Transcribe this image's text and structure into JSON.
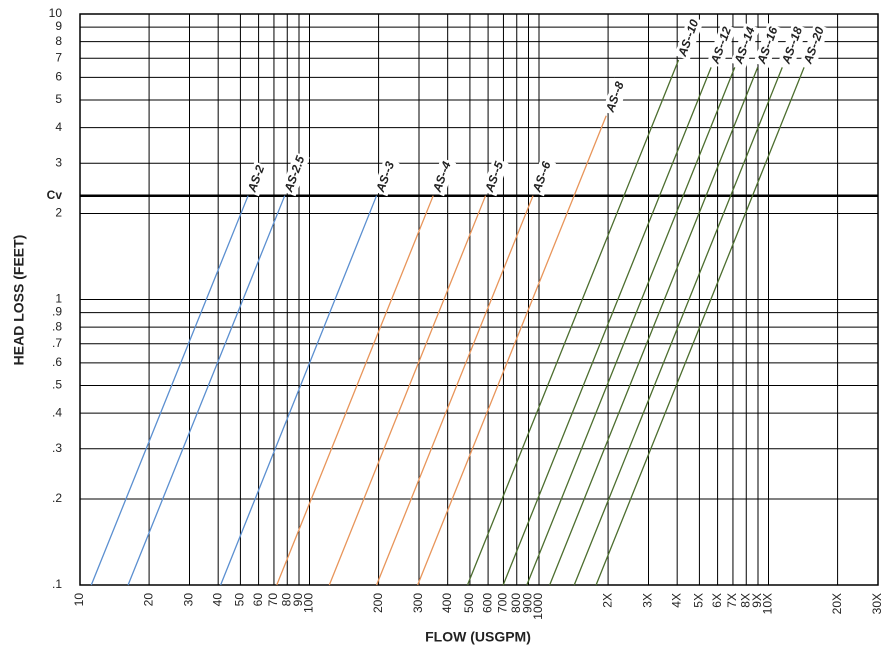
{
  "chart_data": {
    "type": "line",
    "xlabel": "FLOW (USGPM)",
    "ylabel": "HEAD LOSS (FEET)",
    "xscale": "log",
    "yscale": "log",
    "grid": true,
    "xlim": [
      10,
      30000
    ],
    "ylim": [
      0.1,
      10
    ],
    "xticks": [
      10,
      20,
      30,
      40,
      50,
      60,
      70,
      80,
      90,
      100,
      200,
      300,
      400,
      500,
      600,
      700,
      800,
      900,
      1000,
      {
        "value": 2000,
        "label": "2X"
      },
      {
        "value": 3000,
        "label": "3X"
      },
      {
        "value": 4000,
        "label": "4X"
      },
      {
        "value": 5000,
        "label": "5X"
      },
      {
        "value": 6000,
        "label": "6X"
      },
      {
        "value": 7000,
        "label": "7X"
      },
      {
        "value": 8000,
        "label": "8X"
      },
      {
        "value": 9000,
        "label": "9X"
      },
      {
        "value": 10000,
        "label": "10X"
      },
      {
        "value": 20000,
        "label": "20X"
      },
      {
        "value": 30000,
        "label": "30X"
      }
    ],
    "yticks": [
      {
        "value": 0.1,
        "label": ".1"
      },
      {
        "value": 0.2,
        "label": ".2"
      },
      {
        "value": 0.3,
        "label": ".3"
      },
      {
        "value": 0.4,
        "label": ".4"
      },
      {
        "value": 0.5,
        "label": ".5"
      },
      {
        "value": 0.6,
        "label": ".6"
      },
      {
        "value": 0.7,
        "label": ".7"
      },
      {
        "value": 0.8,
        "label": ".8"
      },
      {
        "value": 0.9,
        "label": ".9"
      },
      1,
      2,
      {
        "value": 2.31,
        "label": "Cv"
      },
      3,
      4,
      5,
      6,
      7,
      8,
      9,
      10
    ],
    "series": [
      {
        "name": "AS-2",
        "color": "#5b8fd0",
        "x": [
          11.2,
          54
        ],
        "y": [
          0.1,
          2.31
        ]
      },
      {
        "name": "AS-2.5",
        "color": "#5b8fd0",
        "x": [
          16.2,
          78
        ],
        "y": [
          0.1,
          2.31
        ]
      },
      {
        "name": "AS--3",
        "color": "#5b8fd0",
        "x": [
          41,
          196
        ],
        "y": [
          0.1,
          2.31
        ]
      },
      {
        "name": "AS--4",
        "color": "#e8955a",
        "x": [
          72,
          346
        ],
        "y": [
          0.1,
          2.31
        ]
      },
      {
        "name": "AS--5",
        "color": "#e8955a",
        "x": [
          122,
          585
        ],
        "y": [
          0.1,
          2.31
        ]
      },
      {
        "name": "AS--6",
        "color": "#e8955a",
        "x": [
          196,
          942
        ],
        "y": [
          0.1,
          2.31
        ]
      },
      {
        "name": "AS--8",
        "color": "#e8955a",
        "x": [
          296,
          1963
        ],
        "y": [
          0.1,
          4.4
        ]
      },
      {
        "name": "AS--10",
        "color": "#4c6e2e",
        "x": [
          488,
          4055
        ],
        "y": [
          0.1,
          6.9
        ]
      },
      {
        "name": "AS--12",
        "color": "#4c6e2e",
        "x": [
          698,
          5623
        ],
        "y": [
          0.1,
          6.5
        ]
      },
      {
        "name": "AS--14",
        "color": "#4c6e2e",
        "x": [
          885,
          7130
        ],
        "y": [
          0.1,
          6.5
        ]
      },
      {
        "name": "AS--16",
        "color": "#4c6e2e",
        "x": [
          1113,
          8970
        ],
        "y": [
          0.1,
          6.5
        ]
      },
      {
        "name": "AS--18",
        "color": "#4c6e2e",
        "x": [
          1424,
          11480
        ],
        "y": [
          0.1,
          6.5
        ]
      },
      {
        "name": "AS--20",
        "color": "#4c6e2e",
        "x": [
          1773,
          14290
        ],
        "y": [
          0.1,
          6.5
        ]
      }
    ]
  }
}
